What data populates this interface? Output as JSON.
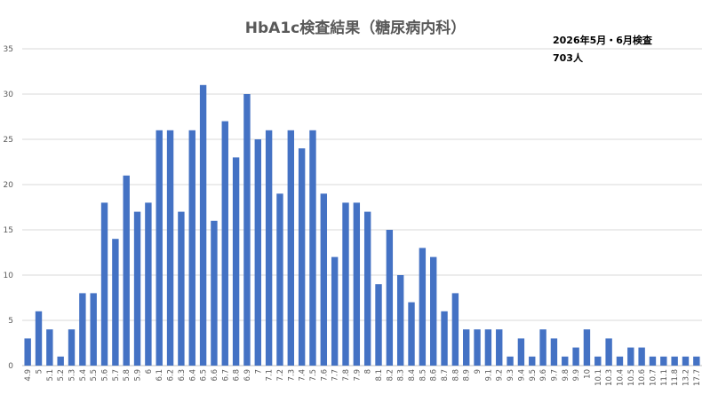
{
  "chart_data": {
    "type": "bar",
    "title": "HbA1c検査結果（糖尿病内科）",
    "annotations": [
      "2026年5月・6月検査",
      "703人"
    ],
    "xlabel": "",
    "ylabel": "",
    "ylim": [
      0,
      35
    ],
    "yticks": [
      0,
      5,
      10,
      15,
      20,
      25,
      30,
      35
    ],
    "grid": true,
    "legend": "none",
    "bar_color": "#4472c4",
    "categories": [
      "4.9",
      "5",
      "5.1",
      "5.2",
      "5.3",
      "5.4",
      "5.5",
      "5.6",
      "5.7",
      "5.8",
      "5.9",
      "6",
      "6.1",
      "6.2",
      "6.3",
      "6.4",
      "6.5",
      "6.6",
      "6.7",
      "6.8",
      "6.9",
      "7",
      "7.1",
      "7.2",
      "7.3",
      "7.4",
      "7.5",
      "7.6",
      "7.7",
      "7.8",
      "7.9",
      "8",
      "8.1",
      "8.2",
      "8.3",
      "8.4",
      "8.5",
      "8.6",
      "8.7",
      "8.8",
      "8.9",
      "9",
      "9.1",
      "9.2",
      "9.3",
      "9.4",
      "9.5",
      "9.6",
      "9.7",
      "9.8",
      "9.9",
      "10",
      "10.1",
      "10.3",
      "10.4",
      "10.5",
      "10.6",
      "10.7",
      "11.1",
      "11.8",
      "13.2",
      "17.7"
    ],
    "values": [
      3,
      6,
      4,
      1,
      4,
      8,
      8,
      18,
      14,
      21,
      17,
      18,
      26,
      26,
      17,
      26,
      31,
      16,
      27,
      23,
      30,
      25,
      26,
      19,
      26,
      24,
      26,
      19,
      12,
      18,
      18,
      17,
      9,
      15,
      10,
      7,
      13,
      12,
      6,
      8,
      4,
      4,
      4,
      4,
      1,
      3,
      1,
      4,
      3,
      1,
      2,
      4,
      1,
      3,
      1,
      2,
      2,
      1,
      1,
      1,
      1,
      1
    ]
  }
}
